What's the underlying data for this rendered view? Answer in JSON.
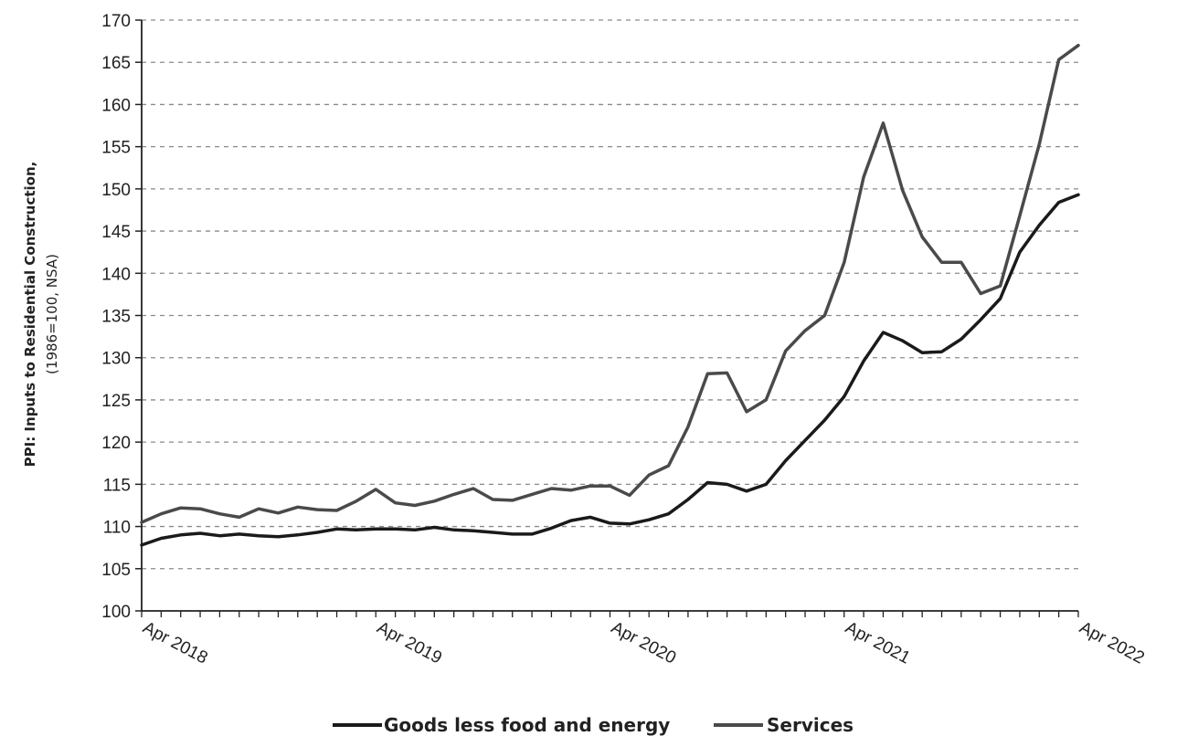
{
  "chart_data": {
    "type": "line",
    "ylabel": "PPI: Inputs to Residential Construction,",
    "ylabel_sub": "(1986=100, NSA)",
    "xlabel": "",
    "title": "",
    "ylim": [
      100,
      170
    ],
    "yticks": [
      100,
      105,
      110,
      115,
      120,
      125,
      130,
      135,
      140,
      145,
      150,
      155,
      160,
      165,
      170
    ],
    "xtick_labels": [
      "Apr 2018",
      "Apr 2019",
      "Apr 2020",
      "Apr 2021",
      "Apr 2022"
    ],
    "grid": "horizontal dashed",
    "legend": "bottom",
    "x_start": "Apr 2018",
    "x_end": "Apr 2022",
    "series": [
      {
        "name": "Goods less food and energy",
        "color": "#1a1a1a",
        "values": [
          107.8,
          108.6,
          109.0,
          109.2,
          108.9,
          109.1,
          108.9,
          108.8,
          109.0,
          109.3,
          109.7,
          109.6,
          109.7,
          109.7,
          109.6,
          109.9,
          109.6,
          109.5,
          109.3,
          109.1,
          109.1,
          109.8,
          110.7,
          111.1,
          110.4,
          110.3,
          110.8,
          111.5,
          113.2,
          115.2,
          115.0,
          114.2,
          115.0,
          117.8,
          120.2,
          122.6,
          125.4,
          129.6,
          133.0,
          132.0,
          130.6,
          130.7,
          132.2,
          134.5,
          137.0,
          142.5,
          145.7,
          148.4,
          149.3
        ]
      },
      {
        "name": "Services",
        "color": "#4a4a4a",
        "values": [
          110.5,
          111.5,
          112.2,
          112.1,
          111.5,
          111.1,
          112.1,
          111.6,
          112.3,
          112.0,
          111.9,
          113.0,
          114.4,
          112.8,
          112.5,
          113.0,
          113.8,
          114.5,
          113.2,
          113.1,
          113.8,
          114.5,
          114.3,
          114.8,
          114.8,
          113.7,
          116.1,
          117.2,
          121.8,
          128.1,
          128.2,
          123.6,
          125.0,
          130.8,
          133.2,
          135.0,
          141.3,
          151.4,
          157.8,
          149.8,
          144.3,
          141.3,
          141.3,
          137.6,
          138.5,
          146.8,
          155.3,
          165.3,
          167.0
        ]
      }
    ]
  }
}
